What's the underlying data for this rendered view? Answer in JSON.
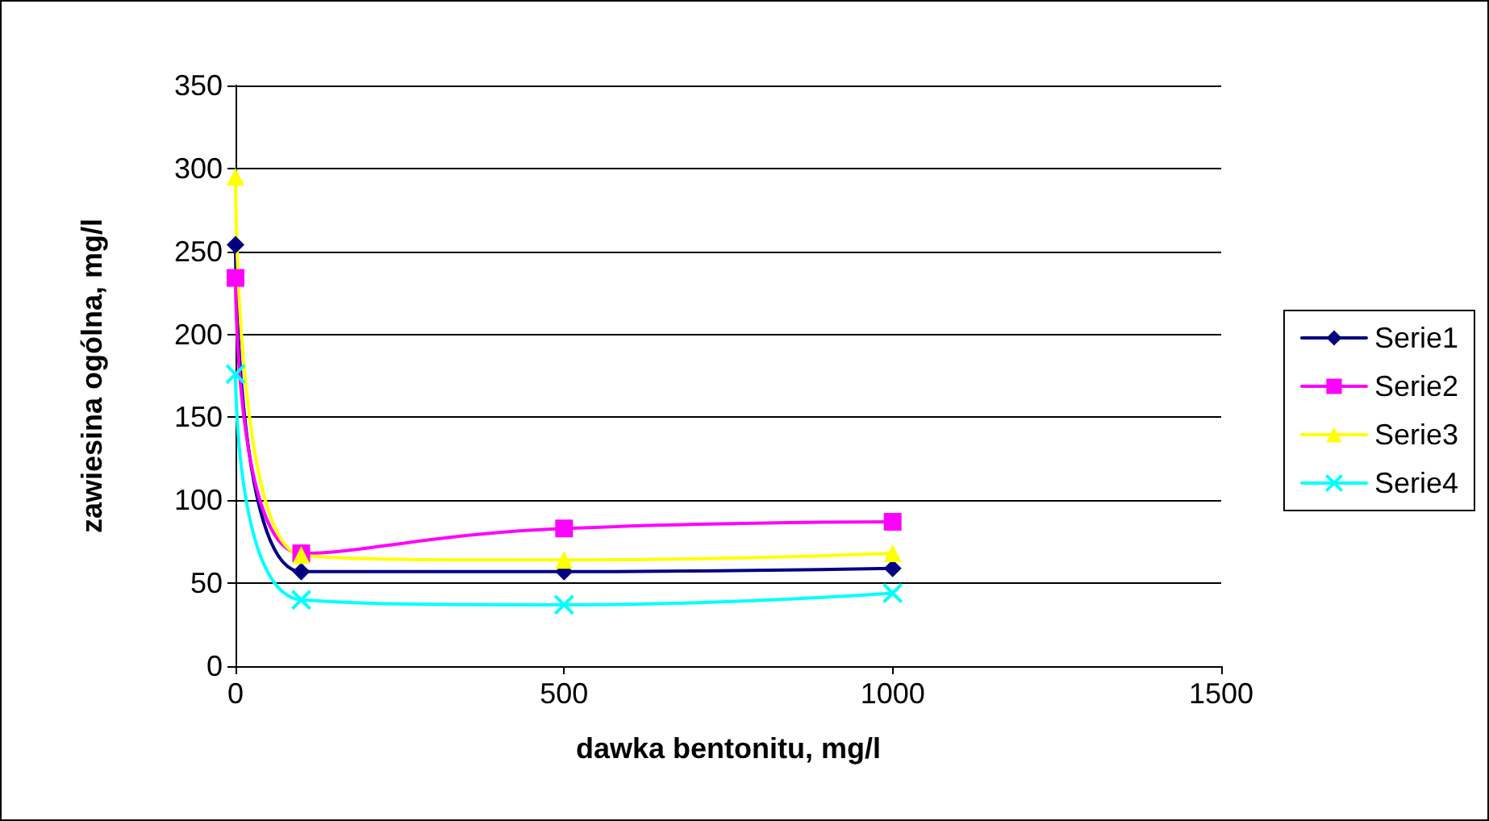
{
  "chart_data": {
    "type": "line",
    "xlabel": "dawka bentonitu, mg/l",
    "ylabel": "zawiesina ogólna, mg/l",
    "x": [
      0,
      100,
      500,
      1000
    ],
    "xlim": [
      0,
      1500
    ],
    "xticks": [
      0,
      500,
      1000,
      1500
    ],
    "ylim": [
      0,
      350
    ],
    "yticks": [
      0,
      50,
      100,
      150,
      200,
      250,
      300,
      350
    ],
    "grid": "y",
    "legend": "right",
    "series": [
      {
        "name": "Serie1",
        "color": "#000080",
        "marker": "diamond",
        "values": [
          254,
          57,
          57,
          59
        ]
      },
      {
        "name": "Serie2",
        "color": "#ff00ff",
        "marker": "square",
        "values": [
          234,
          68,
          83,
          87
        ]
      },
      {
        "name": "Serie3",
        "color": "#ffff00",
        "marker": "triangle",
        "values": [
          295,
          67,
          64,
          68
        ]
      },
      {
        "name": "Serie4",
        "color": "#00ffff",
        "marker": "cross",
        "values": [
          176,
          40,
          37,
          44
        ]
      }
    ]
  }
}
